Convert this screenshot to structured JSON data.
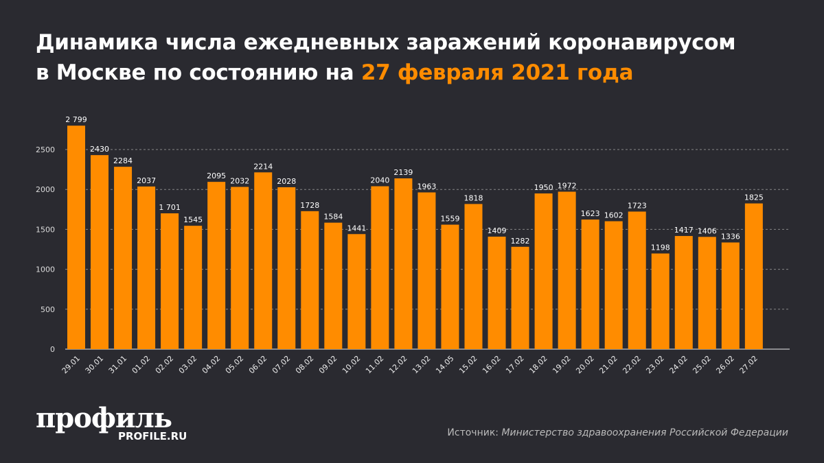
{
  "title": {
    "line1": "Динамика числа ежедневных заражений коронавирусом",
    "line2_prefix": "в Москве по состоянию на ",
    "line2_highlight": "27 февраля 2021 года"
  },
  "brand": {
    "logo": "профиль",
    "site": "PROFILE.RU"
  },
  "source": {
    "label": "Источник: ",
    "name": "Министерство здравоохранения Российской Федерации"
  },
  "colors": {
    "bar": "#ff8c00",
    "background": "#2a2a30",
    "highlight": "#ff8c00"
  },
  "chart_data": {
    "type": "bar",
    "categories": [
      "29.01",
      "30.01",
      "31.01",
      "01.02",
      "02.02",
      "03.02",
      "04.02",
      "05.02",
      "06.02",
      "07.02",
      "08.02",
      "09.02",
      "10.02",
      "11.02",
      "12.02",
      "13.02",
      "14.05",
      "15.02",
      "16.02",
      "17.02",
      "18.02",
      "19.02",
      "20.02",
      "21.02",
      "22.02",
      "23.02",
      "24.02",
      "25.02",
      "26.02",
      "27.02"
    ],
    "values": [
      2799,
      2430,
      2284,
      2037,
      1701,
      1545,
      2095,
      2032,
      2214,
      2028,
      1728,
      1584,
      1441,
      2040,
      2139,
      1963,
      1559,
      1818,
      1409,
      1282,
      1950,
      1972,
      1623,
      1602,
      1723,
      1198,
      1417,
      1406,
      1336,
      1825
    ],
    "data_labels": [
      "2 799",
      "2430",
      "2284",
      "2037",
      "1 701",
      "1545",
      "2095",
      "2032",
      "2214",
      "2028",
      "1728",
      "1584",
      "1441",
      "2040",
      "2139",
      "1963",
      "1559",
      "1818",
      "1409",
      "1282",
      "1950",
      "1972",
      "1623",
      "1602",
      "1723",
      "1198",
      "1417",
      "1406",
      "1336",
      "1825"
    ],
    "yticks": [
      0,
      500,
      1000,
      1500,
      2000,
      2500
    ],
    "ylim": [
      0,
      2800
    ],
    "grid": true,
    "gridlines": "dashed"
  }
}
